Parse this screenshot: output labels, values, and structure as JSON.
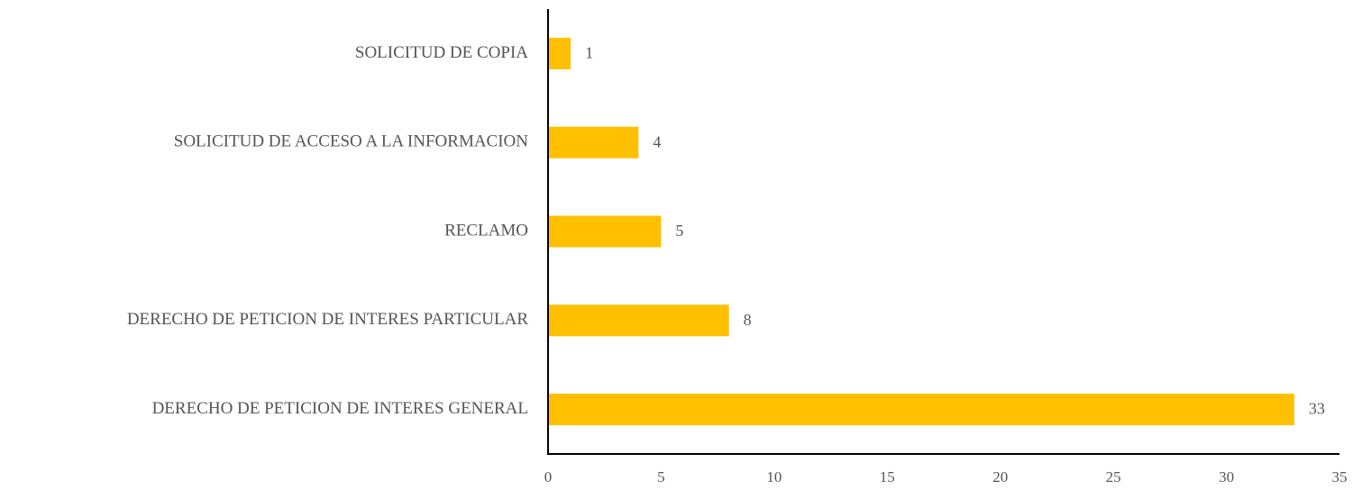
{
  "chart_data": {
    "type": "bar",
    "orientation": "horizontal",
    "categories": [
      "SOLICITUD DE COPIA",
      "SOLICITUD DE ACCESO A LA INFORMACION",
      "RECLAMO",
      "DERECHO DE PETICION DE INTERES PARTICULAR",
      "DERECHO DE PETICION DE INTERES GENERAL"
    ],
    "values": [
      1,
      4,
      5,
      8,
      33
    ],
    "xlim": [
      0,
      35
    ],
    "xticks": [
      0,
      5,
      10,
      15,
      20,
      25,
      30,
      35
    ],
    "bar_color": "#FFC000",
    "grid": false,
    "legend": "none",
    "data_labels": true
  }
}
